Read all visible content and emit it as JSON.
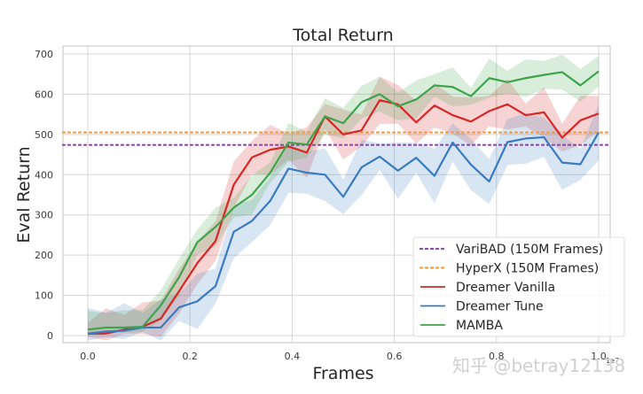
{
  "chart_data": {
    "type": "line",
    "title": "Total Return",
    "xlabel": "Frames",
    "ylabel": "Eval Return",
    "x_scale_note": "1e7",
    "xlim": [
      -0.05,
      1.04
    ],
    "ylim": [
      -15,
      715
    ],
    "xticks": [
      "0.0",
      "0.2",
      "0.4",
      "0.6",
      "0.8",
      "1.0"
    ],
    "xtick_values": [
      0.0,
      0.2,
      0.4,
      0.6,
      0.8,
      1.0
    ],
    "yticks": [
      "0",
      "100",
      "200",
      "300",
      "400",
      "500",
      "600",
      "700"
    ],
    "ytick_values": [
      0,
      100,
      200,
      300,
      400,
      500,
      600,
      700
    ],
    "grid": true,
    "legend_position": "lower right",
    "hlines": [
      {
        "name": "VariBAD (150M Frames)",
        "y": 474,
        "color": "#8e44ad",
        "style": "dotted"
      },
      {
        "name": "HyperX (150M Frames)",
        "y": 505,
        "color": "#f39c3c",
        "style": "dotted"
      }
    ],
    "x": [
      0.0,
      0.0357,
      0.0714,
      0.1071,
      0.1429,
      0.1786,
      0.2143,
      0.25,
      0.2857,
      0.3214,
      0.3571,
      0.3929,
      0.4286,
      0.4643,
      0.5,
      0.5357,
      0.5714,
      0.6071,
      0.6429,
      0.6786,
      0.7143,
      0.75,
      0.7857,
      0.8214,
      0.8571,
      0.8929,
      0.9286,
      0.9643,
      1.0
    ],
    "series": [
      {
        "name": "Dreamer Vanilla",
        "color": "#d62728",
        "values": [
          5,
          5,
          15,
          22,
          42,
          110,
          180,
          235,
          375,
          443,
          462,
          470,
          455,
          545,
          500,
          510,
          585,
          575,
          530,
          572,
          548,
          532,
          558,
          575,
          548,
          555,
          492,
          535,
          552
        ],
        "band": 45
      },
      {
        "name": "Dreamer Tune",
        "color": "#3a7bbf",
        "values": [
          5,
          10,
          12,
          20,
          20,
          70,
          85,
          123,
          258,
          285,
          335,
          415,
          405,
          400,
          345,
          418,
          445,
          410,
          442,
          397,
          480,
          425,
          383,
          481,
          490,
          493,
          430,
          426,
          505
        ],
        "band": 50
      },
      {
        "name": "MAMBA",
        "color": "#3fa34d",
        "values": [
          15,
          20,
          20,
          22,
          75,
          145,
          232,
          270,
          318,
          350,
          405,
          480,
          475,
          545,
          528,
          580,
          600,
          570,
          587,
          622,
          618,
          595,
          640,
          630,
          640,
          648,
          655,
          622,
          657
        ],
        "band": 35
      }
    ]
  },
  "legend": {
    "items": [
      {
        "label": "VariBAD (150M Frames)",
        "color": "#8e44ad",
        "style": "dotted"
      },
      {
        "label": "HyperX (150M Frames)",
        "color": "#f39c3c",
        "style": "dotted"
      },
      {
        "label": "Dreamer Vanilla",
        "color": "#d62728",
        "style": "solid"
      },
      {
        "label": "Dreamer Tune",
        "color": "#3a7bbf",
        "style": "solid"
      },
      {
        "label": "MAMBA",
        "color": "#3fa34d",
        "style": "solid"
      }
    ]
  },
  "watermark": "知乎 @betray12138"
}
